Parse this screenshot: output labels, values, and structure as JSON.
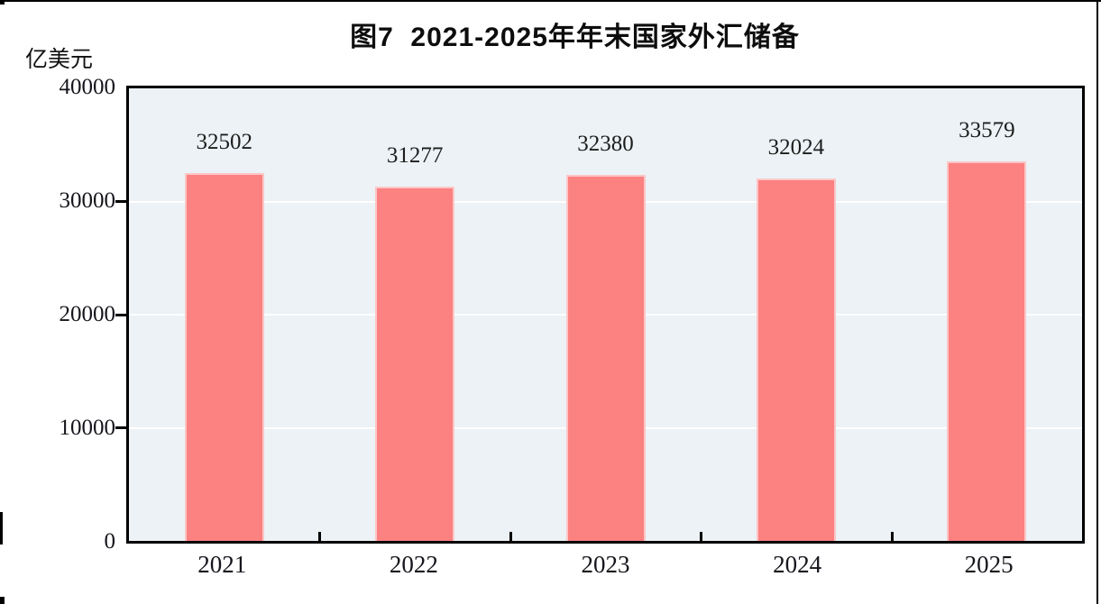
{
  "chart_data": {
    "type": "bar",
    "title": "图7  2021-2025年年末国家外汇储备",
    "unit_label": "亿美元",
    "categories": [
      "2021",
      "2022",
      "2023",
      "2024",
      "2025"
    ],
    "values": [
      32502,
      31277,
      32380,
      32024,
      33579
    ],
    "data_labels": [
      "32502",
      "31277",
      "32380",
      "32024",
      "33579"
    ],
    "ylim": [
      0,
      40000
    ],
    "ytick_interval": 10000,
    "ytick_labels": [
      "40000",
      "30000",
      "20000",
      "10000",
      "0"
    ],
    "legend": "none",
    "grid": "horizontal white gridlines every 10000",
    "colors": {
      "bar_fill": "#fc8181",
      "bar_border": "#fdc6c6",
      "plot_background": "#ecf2f6",
      "gridline": "#ffffff",
      "axis": "#000000",
      "text": "#1a1a1a"
    }
  }
}
